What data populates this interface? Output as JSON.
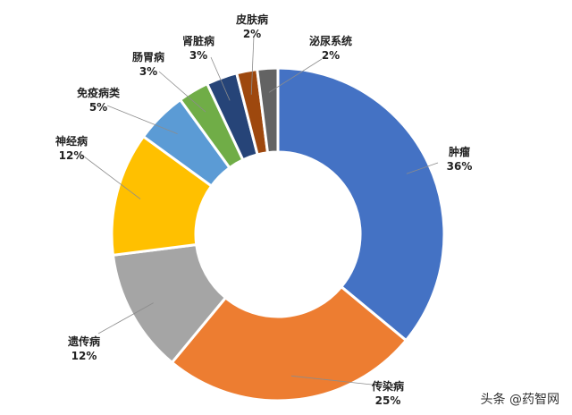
{
  "chart_data": {
    "type": "pie",
    "variant": "donut",
    "title": "",
    "legend": "none",
    "slices": [
      {
        "name": "肿瘤",
        "value": 36,
        "label": "36%",
        "color": "#4472C4"
      },
      {
        "name": "传染病",
        "value": 25,
        "label": "25%",
        "color": "#ED7D31"
      },
      {
        "name": "遗传病",
        "value": 12,
        "label": "12%",
        "color": "#A5A5A5"
      },
      {
        "name": "神经病",
        "value": 12,
        "label": "12%",
        "color": "#FFC000"
      },
      {
        "name": "免疫病类",
        "value": 5,
        "label": "5%",
        "color": "#5B9BD5"
      },
      {
        "name": "肠胃病",
        "value": 3,
        "label": "3%",
        "color": "#70AD47"
      },
      {
        "name": "肾脏病",
        "value": 3,
        "label": "3%",
        "color": "#264478"
      },
      {
        "name": "皮肤病",
        "value": 2,
        "label": "2%",
        "color": "#9E480E"
      },
      {
        "name": "泌尿系统",
        "value": 2,
        "label": "2%",
        "color": "#636363"
      }
    ]
  },
  "watermark": "头条 @药智网"
}
